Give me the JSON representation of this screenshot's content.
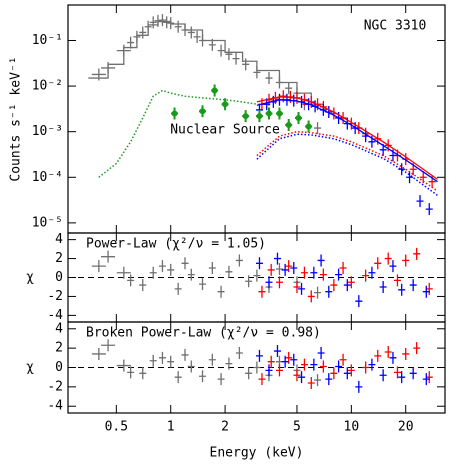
{
  "chart_data": [
    {
      "type": "scatter",
      "title": "NGC 3310",
      "annotation": "Nuclear Source",
      "annotation_color": "#1a9a1a",
      "ylabel": "Counts s⁻¹ keV⁻¹",
      "log_x": true,
      "log_y": true,
      "xlim": [
        0.27,
        33
      ],
      "ylim": [
        6e-06,
        0.6
      ],
      "yticks": [
        {
          "value": 1e-05,
          "label": "10⁻⁵"
        },
        {
          "value": 0.0001,
          "label": "10⁻⁴"
        },
        {
          "value": 0.001,
          "label": "10⁻³"
        },
        {
          "value": 0.01,
          "label": "10⁻²"
        },
        {
          "value": 0.1,
          "label": "10⁻¹"
        }
      ],
      "series": [
        {
          "color": "#707070",
          "style": "points",
          "x": [
            0.4,
            0.45,
            0.55,
            0.6,
            0.65,
            0.7,
            0.75,
            0.8,
            0.85,
            0.9,
            0.95,
            1.0,
            1.1,
            1.2,
            1.3,
            1.4,
            1.5,
            1.7,
            1.9,
            2.1,
            2.3,
            2.6,
            3.0,
            3.5,
            4.0,
            4.5,
            5.0,
            5.5,
            6.5
          ],
          "values": [
            0.018,
            0.025,
            0.06,
            0.09,
            0.12,
            0.15,
            0.2,
            0.25,
            0.27,
            0.28,
            0.25,
            0.24,
            0.2,
            0.17,
            0.15,
            0.12,
            0.1,
            0.08,
            0.06,
            0.05,
            0.04,
            0.03,
            0.02,
            0.015,
            0.012,
            0.009,
            0.007,
            0.004,
            0.0012
          ]
        },
        {
          "color": "#707070",
          "style": "step",
          "x": [
            0.35,
            0.45,
            0.55,
            0.65,
            0.75,
            0.85,
            1.0,
            1.2,
            1.5,
            2.0,
            2.5,
            3.0,
            4.0,
            5.0,
            6.0,
            7.0
          ],
          "values": [
            0.015,
            0.03,
            0.07,
            0.13,
            0.22,
            0.26,
            0.23,
            0.17,
            0.1,
            0.055,
            0.035,
            0.022,
            0.012,
            0.007,
            0.004,
            0.003
          ]
        },
        {
          "color": "#ff0000",
          "style": "points",
          "x": [
            3.2,
            3.5,
            3.8,
            4.2,
            4.6,
            5,
            5.5,
            6,
            6.5,
            7,
            8,
            9,
            10,
            11,
            12,
            14,
            16,
            18,
            20,
            22,
            25,
            28
          ],
          "values": [
            0.004,
            0.005,
            0.0055,
            0.006,
            0.0058,
            0.0055,
            0.005,
            0.0045,
            0.004,
            0.0035,
            0.0025,
            0.002,
            0.0015,
            0.0012,
            0.0009,
            0.0007,
            0.0005,
            0.0003,
            0.00025,
            0.00015,
            0.0001,
            8e-05
          ]
        },
        {
          "color": "#0000ff",
          "style": "points",
          "x": [
            3.1,
            3.4,
            3.7,
            4,
            4.4,
            4.8,
            5.3,
            5.8,
            6.3,
            7,
            7.5,
            8.5,
            9.5,
            10.5,
            12,
            13,
            15,
            17,
            19,
            21,
            24,
            27
          ],
          "values": [
            0.003,
            0.004,
            0.0045,
            0.005,
            0.005,
            0.0048,
            0.0045,
            0.004,
            0.0036,
            0.003,
            0.0027,
            0.002,
            0.0015,
            0.0012,
            0.0008,
            0.0006,
            0.0004,
            0.0003,
            0.00015,
            0.0001,
            3e-05,
            2e-05
          ]
        },
        {
          "color": "#ff0000",
          "style": "line",
          "x": [
            3,
            4,
            5,
            6,
            8,
            10,
            15,
            20,
            30
          ],
          "values": [
            0.0045,
            0.0058,
            0.0055,
            0.0045,
            0.0027,
            0.0016,
            0.0006,
            0.00028,
            9e-05
          ]
        },
        {
          "color": "#0000ff",
          "style": "line",
          "x": [
            3,
            4,
            5,
            6,
            8,
            10,
            15,
            20,
            30
          ],
          "values": [
            0.0038,
            0.005,
            0.0047,
            0.0039,
            0.0023,
            0.0014,
            0.0005,
            0.00024,
            8e-05
          ]
        },
        {
          "color": "#1a9a1a",
          "style": "dotted",
          "x": [
            0.4,
            0.5,
            0.6,
            0.7,
            0.8,
            0.9,
            1.0,
            1.2,
            1.5,
            2,
            2.5,
            3
          ],
          "values": [
            0.0001,
            0.0002,
            0.0006,
            0.002,
            0.006,
            0.008,
            0.007,
            0.006,
            0.0055,
            0.005,
            0.0045,
            0.004
          ]
        },
        {
          "color": "#ff0000",
          "style": "dotted",
          "x": [
            3,
            4,
            5,
            6,
            8,
            10,
            15,
            20,
            30
          ],
          "values": [
            0.0003,
            0.0008,
            0.001,
            0.00095,
            0.0008,
            0.0006,
            0.0003,
            0.00015,
            5e-05
          ]
        },
        {
          "color": "#0000ff",
          "style": "dotted",
          "x": [
            3,
            4,
            5,
            6,
            8,
            10,
            15,
            20,
            30
          ],
          "values": [
            0.00025,
            0.0007,
            0.00088,
            0.00085,
            0.0007,
            0.00052,
            0.00026,
            0.00013,
            4e-05
          ]
        },
        {
          "color": "#1a9a1a",
          "style": "points",
          "x": [
            1.05,
            1.5,
            1.75,
            2.0,
            2.6,
            3.1,
            3.5,
            4.0,
            4.5,
            5.1,
            5.8
          ],
          "values": [
            0.0025,
            0.0028,
            0.008,
            0.004,
            0.0022,
            0.0022,
            0.0025,
            0.0025,
            0.0014,
            0.002,
            0.0013
          ]
        }
      ]
    },
    {
      "type": "scatter",
      "title": "Power-Law (χ²/ν = 1.05)",
      "ylabel": "χ",
      "log_x": true,
      "xlim": [
        0.27,
        33
      ],
      "ylim": [
        -4.7,
        4.7
      ],
      "yticks": [
        -4,
        -2,
        0,
        2,
        4
      ],
      "reference_line": 0,
      "series": [
        {
          "color": "#707070",
          "style": "points",
          "x": [
            0.4,
            0.45,
            0.55,
            0.6,
            0.7,
            0.8,
            0.9,
            1.0,
            1.1,
            1.2,
            1.3,
            1.5,
            1.7,
            1.9,
            2.1,
            2.4,
            2.7,
            3.0,
            3.5,
            4.0,
            5.0,
            6.5
          ],
          "values": [
            1.2,
            2.2,
            0.5,
            -0.3,
            -0.8,
            0.5,
            1.2,
            0.8,
            -1.2,
            1.5,
            0.3,
            -0.7,
            1.0,
            -1.5,
            0.6,
            1.8,
            -0.4,
            0.2,
            -1.0,
            0.9,
            -0.5,
            -1.6
          ]
        },
        {
          "color": "#ff0000",
          "style": "points",
          "x": [
            3.2,
            3.6,
            4.0,
            4.5,
            5,
            5.5,
            6,
            7,
            8,
            9,
            10,
            12,
            14,
            16,
            18,
            20,
            23,
            27
          ],
          "values": [
            -1.5,
            0.8,
            -0.5,
            1.2,
            -1.0,
            0.5,
            -2.0,
            0.3,
            -0.8,
            1.0,
            -0.5,
            0.2,
            1.5,
            2.0,
            -0.3,
            1.8,
            2.5,
            -1.2
          ]
        },
        {
          "color": "#0000ff",
          "style": "points",
          "x": [
            3.1,
            3.5,
            3.9,
            4.3,
            4.8,
            5.3,
            6.2,
            6.8,
            7.5,
            8.5,
            9.5,
            11,
            13,
            15,
            17,
            19,
            22,
            26
          ],
          "values": [
            1.5,
            -0.5,
            2.0,
            0.8,
            1.0,
            -1.2,
            0.5,
            1.8,
            -1.5,
            0.3,
            -0.8,
            -2.5,
            0.5,
            -1.0,
            1.2,
            -1.3,
            -0.8,
            -1.5
          ]
        }
      ]
    },
    {
      "type": "scatter",
      "title": "Broken Power-Law (χ²/ν = 0.98)",
      "ylabel": "χ",
      "xlabel": "Energy (keV)",
      "log_x": true,
      "xlim": [
        0.27,
        33
      ],
      "ylim": [
        -4.7,
        4.7
      ],
      "xticks": [
        0.5,
        1,
        2,
        5,
        10,
        20
      ],
      "yticks": [
        -4,
        -2,
        0,
        2,
        4
      ],
      "reference_line": 0,
      "series": [
        {
          "color": "#707070",
          "style": "points",
          "x": [
            0.4,
            0.45,
            0.55,
            0.6,
            0.7,
            0.8,
            0.9,
            1.0,
            1.1,
            1.2,
            1.3,
            1.5,
            1.7,
            1.9,
            2.1,
            2.4,
            2.7,
            3.0,
            3.5,
            4.0,
            5.0,
            6.5
          ],
          "values": [
            1.4,
            2.3,
            0.2,
            -0.5,
            -0.6,
            0.7,
            1.0,
            0.6,
            -1.0,
            1.3,
            0.1,
            -0.9,
            0.8,
            -1.2,
            0.4,
            1.5,
            -0.6,
            0.0,
            -0.8,
            0.6,
            -0.3,
            -1.3
          ]
        },
        {
          "color": "#ff0000",
          "style": "points",
          "x": [
            3.2,
            3.6,
            4.0,
            4.5,
            5,
            5.5,
            6,
            7,
            8,
            9,
            10,
            12,
            14,
            16,
            18,
            20,
            23,
            27
          ],
          "values": [
            -1.2,
            0.6,
            -0.3,
            1.0,
            -0.8,
            0.3,
            -1.6,
            0.1,
            -0.6,
            0.8,
            -0.3,
            0.0,
            1.2,
            1.6,
            -0.5,
            1.4,
            2.0,
            -1.0
          ]
        },
        {
          "color": "#0000ff",
          "style": "points",
          "x": [
            3.1,
            3.5,
            3.9,
            4.3,
            4.8,
            5.3,
            6.2,
            6.8,
            7.5,
            8.5,
            9.5,
            11,
            13,
            15,
            17,
            19,
            22,
            26
          ],
          "values": [
            1.2,
            -0.3,
            1.7,
            0.6,
            0.8,
            -1.0,
            0.3,
            1.5,
            -1.2,
            0.1,
            -0.6,
            -2.0,
            0.3,
            -0.8,
            1.0,
            -1.0,
            -0.6,
            -1.2
          ]
        }
      ]
    }
  ]
}
